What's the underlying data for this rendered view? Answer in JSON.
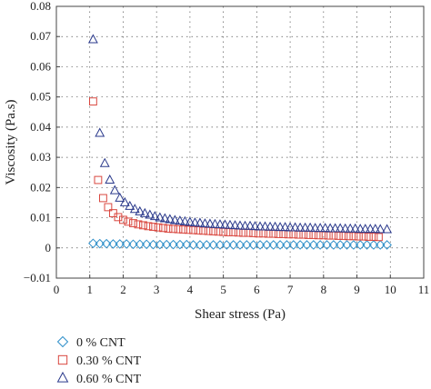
{
  "chart_data": {
    "type": "scatter",
    "title": "",
    "xlabel": "Shear stress (Pa)",
    "ylabel": "Viscosity (Pa.s)",
    "xlim": [
      0,
      11
    ],
    "ylim": [
      -0.01,
      0.08
    ],
    "xticks": [
      "0",
      "1",
      "2",
      "3",
      "4",
      "5",
      "6",
      "7",
      "8",
      "9",
      "10",
      "11"
    ],
    "yticks": [
      "0.08",
      "0.07",
      "0.06",
      "0.05",
      "0.04",
      "0.03",
      "0.02",
      "0.01",
      "0",
      "−0.01"
    ],
    "grid": true,
    "legend_position": "bottom-left",
    "series": [
      {
        "name": "0 % CNT",
        "marker": "diamond",
        "color": "#2e8fc9",
        "x": [
          1.1,
          1.3,
          1.5,
          1.7,
          1.9,
          2.1,
          2.3,
          2.5,
          2.7,
          2.9,
          3.1,
          3.3,
          3.5,
          3.7,
          3.9,
          4.1,
          4.3,
          4.5,
          4.7,
          4.9,
          5.1,
          5.3,
          5.5,
          5.7,
          5.9,
          6.1,
          6.3,
          6.5,
          6.7,
          6.9,
          7.1,
          7.3,
          7.5,
          7.7,
          7.9,
          8.1,
          8.3,
          8.5,
          8.7,
          8.9,
          9.1,
          9.3,
          9.5,
          9.7,
          9.9
        ],
        "y": [
          0.0015,
          0.0014,
          0.0014,
          0.0013,
          0.0013,
          0.0013,
          0.0012,
          0.0012,
          0.0012,
          0.0011,
          0.0011,
          0.0011,
          0.0011,
          0.0011,
          0.0011,
          0.001,
          0.001,
          0.001,
          0.001,
          0.001,
          0.001,
          0.001,
          0.001,
          0.001,
          0.001,
          0.001,
          0.001,
          0.001,
          0.001,
          0.001,
          0.001,
          0.001,
          0.001,
          0.001,
          0.001,
          0.001,
          0.001,
          0.001,
          0.001,
          0.001,
          0.001,
          0.001,
          0.001,
          0.001,
          0.001
        ]
      },
      {
        "name": "0.30 % CNT",
        "marker": "square",
        "color": "#d9473f",
        "x": [
          1.1,
          1.25,
          1.4,
          1.55,
          1.7,
          1.85,
          2.0,
          2.15,
          2.3,
          2.45,
          2.6,
          2.75,
          2.9,
          3.05,
          3.2,
          3.35,
          3.5,
          3.65,
          3.8,
          3.95,
          4.1,
          4.25,
          4.4,
          4.55,
          4.7,
          4.85,
          5.0,
          5.15,
          5.3,
          5.45,
          5.6,
          5.75,
          5.9,
          6.05,
          6.2,
          6.35,
          6.5,
          6.65,
          6.8,
          6.95,
          7.1,
          7.25,
          7.4,
          7.55,
          7.7,
          7.85,
          8.0,
          8.15,
          8.3,
          8.45,
          8.6,
          8.75,
          8.9,
          9.05,
          9.2,
          9.35,
          9.5,
          9.65
        ],
        "y": [
          0.0485,
          0.0225,
          0.0165,
          0.0135,
          0.0115,
          0.0102,
          0.0093,
          0.0087,
          0.0082,
          0.0078,
          0.0075,
          0.0072,
          0.007,
          0.0068,
          0.0066,
          0.0064,
          0.0063,
          0.0062,
          0.0061,
          0.006,
          0.0059,
          0.0058,
          0.0057,
          0.0056,
          0.0055,
          0.0054,
          0.0053,
          0.0052,
          0.0052,
          0.0051,
          0.005,
          0.005,
          0.0049,
          0.0048,
          0.0048,
          0.0047,
          0.0047,
          0.0046,
          0.0046,
          0.0045,
          0.0045,
          0.0044,
          0.0044,
          0.0043,
          0.0043,
          0.0042,
          0.0042,
          0.0041,
          0.0041,
          0.004,
          0.004,
          0.0039,
          0.0039,
          0.0038,
          0.0038,
          0.0037,
          0.0037,
          0.0036
        ]
      },
      {
        "name": "0.60 % CNT",
        "marker": "triangle",
        "color": "#2b3a8c",
        "x": [
          1.1,
          1.3,
          1.45,
          1.6,
          1.75,
          1.9,
          2.05,
          2.2,
          2.35,
          2.5,
          2.65,
          2.8,
          2.95,
          3.1,
          3.25,
          3.4,
          3.55,
          3.7,
          3.85,
          4.0,
          4.15,
          4.3,
          4.45,
          4.6,
          4.75,
          4.9,
          5.05,
          5.2,
          5.35,
          5.5,
          5.65,
          5.8,
          5.95,
          6.1,
          6.25,
          6.4,
          6.55,
          6.7,
          6.85,
          7.0,
          7.15,
          7.3,
          7.45,
          7.6,
          7.75,
          7.9,
          8.05,
          8.2,
          8.35,
          8.5,
          8.65,
          8.8,
          8.95,
          9.1,
          9.25,
          9.4,
          9.55,
          9.7,
          9.9
        ],
        "y": [
          0.069,
          0.038,
          0.028,
          0.0225,
          0.019,
          0.0165,
          0.015,
          0.0138,
          0.0128,
          0.012,
          0.0114,
          0.0109,
          0.0104,
          0.01,
          0.0097,
          0.0094,
          0.0091,
          0.0089,
          0.0087,
          0.0085,
          0.0083,
          0.0082,
          0.008,
          0.0079,
          0.0078,
          0.0077,
          0.0076,
          0.0075,
          0.0074,
          0.0073,
          0.0072,
          0.0072,
          0.0071,
          0.007,
          0.007,
          0.0069,
          0.0069,
          0.0068,
          0.0068,
          0.0067,
          0.0067,
          0.0066,
          0.0066,
          0.0066,
          0.0065,
          0.0065,
          0.0065,
          0.0064,
          0.0064,
          0.0064,
          0.0063,
          0.0063,
          0.0063,
          0.0062,
          0.0062,
          0.0062,
          0.0062,
          0.0061,
          0.0061
        ]
      }
    ]
  }
}
